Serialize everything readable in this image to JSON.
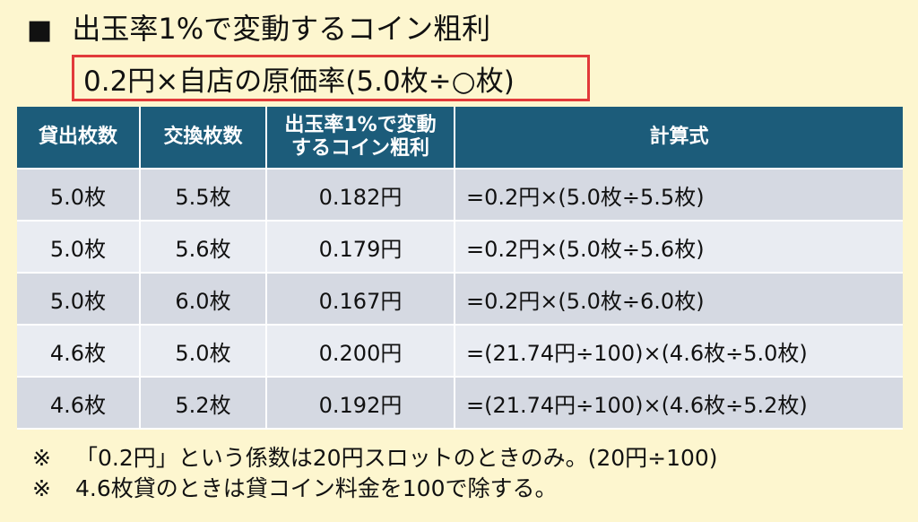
{
  "title": {
    "marker": "■",
    "text": "出玉率1%で変動するコイン粗利"
  },
  "formula": "0.2円×自店の原価率(5.0枚÷○枚)",
  "table": {
    "headers": [
      "貸出枚数",
      "交換枚数",
      "出玉率1%で変動するコイン粗利",
      "計算式"
    ],
    "header_lines_col3": [
      "出玉率1%で変動",
      "するコイン粗利"
    ],
    "rows": [
      [
        "5.0枚",
        "5.5枚",
        "0.182円",
        "=0.2円×(5.0枚÷5.5枚)"
      ],
      [
        "5.0枚",
        "5.6枚",
        "0.179円",
        "=0.2円×(5.0枚÷5.6枚)"
      ],
      [
        "5.0枚",
        "6.0枚",
        "0.167円",
        "=0.2円×(5.0枚÷6.0枚)"
      ],
      [
        "4.6枚",
        "5.0枚",
        "0.200円",
        "=(21.74円÷100)×(4.6枚÷5.0枚)"
      ],
      [
        "4.6枚",
        "5.2枚",
        "0.192円",
        "=(21.74円÷100)×(4.6枚÷5.2枚)"
      ]
    ]
  },
  "notes": [
    {
      "mark": "※",
      "text": "「0.2円」という係数は20円スロットのときのみ。(20円÷100)"
    },
    {
      "mark": "※",
      "text": "4.6枚貸のときは貸コイン料金を100で除する。"
    }
  ],
  "colors": {
    "background": "#fdf6cf",
    "header_bg": "#1c5c7a",
    "row_dark": "#d5d9e2",
    "row_light": "#e9ecf2",
    "highlight_border": "#e23a3a"
  }
}
